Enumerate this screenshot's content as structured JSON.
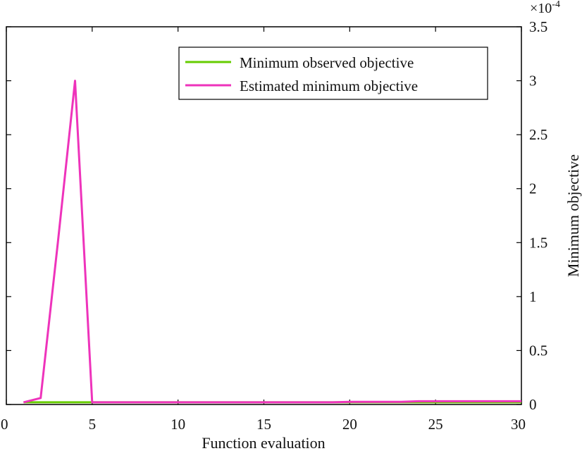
{
  "chart_data": {
    "type": "line",
    "title": "",
    "xlabel": "Function evaluation",
    "ylabel": "Minimum objective",
    "y_multiplier": "×10",
    "y_multiplier_exp": "-4",
    "xlim": [
      0,
      30
    ],
    "ylim": [
      0,
      3.5
    ],
    "xticks": [
      0,
      5,
      10,
      15,
      20,
      25,
      30
    ],
    "yticks": [
      0,
      0.5,
      1,
      1.5,
      2,
      2.5,
      3,
      3.5
    ],
    "xtick_labels": [
      "0",
      "5",
      "10",
      "15",
      "20",
      "25",
      "30"
    ],
    "ytick_labels": [
      "0",
      "0.5",
      "1",
      "1.5",
      "2",
      "2.5",
      "3",
      "3.5"
    ],
    "grid": false,
    "legend_position": "top-right",
    "series": [
      {
        "name": "Minimum observed objective",
        "color": "#66cc00",
        "x": [
          1,
          2,
          3,
          4,
          5,
          6,
          7,
          8,
          9,
          10,
          11,
          12,
          13,
          14,
          15,
          16,
          17,
          18,
          19,
          20,
          21,
          22,
          23,
          24,
          25,
          26,
          27,
          28,
          29,
          30
        ],
        "y": [
          0.02,
          0.02,
          0.02,
          0.02,
          0.02,
          0.02,
          0.02,
          0.02,
          0.02,
          0.02,
          0.02,
          0.02,
          0.02,
          0.02,
          0.02,
          0.02,
          0.02,
          0.02,
          0.02,
          0.02,
          0.02,
          0.02,
          0.02,
          0.02,
          0.02,
          0.02,
          0.02,
          0.02,
          0.02,
          0.02
        ]
      },
      {
        "name": "Estimated minimum objective",
        "color": "#ee33bb",
        "x": [
          1,
          2,
          3,
          4,
          5,
          6,
          7,
          8,
          9,
          10,
          11,
          12,
          13,
          14,
          15,
          16,
          17,
          18,
          19,
          20,
          21,
          22,
          23,
          24,
          25,
          26,
          27,
          28,
          29,
          30
        ],
        "y": [
          0.02,
          0.06,
          1.5,
          3.0,
          0.02,
          0.02,
          0.02,
          0.02,
          0.02,
          0.02,
          0.02,
          0.02,
          0.02,
          0.02,
          0.02,
          0.02,
          0.02,
          0.02,
          0.02,
          0.025,
          0.025,
          0.025,
          0.025,
          0.03,
          0.03,
          0.03,
          0.03,
          0.03,
          0.03,
          0.03
        ]
      }
    ]
  }
}
